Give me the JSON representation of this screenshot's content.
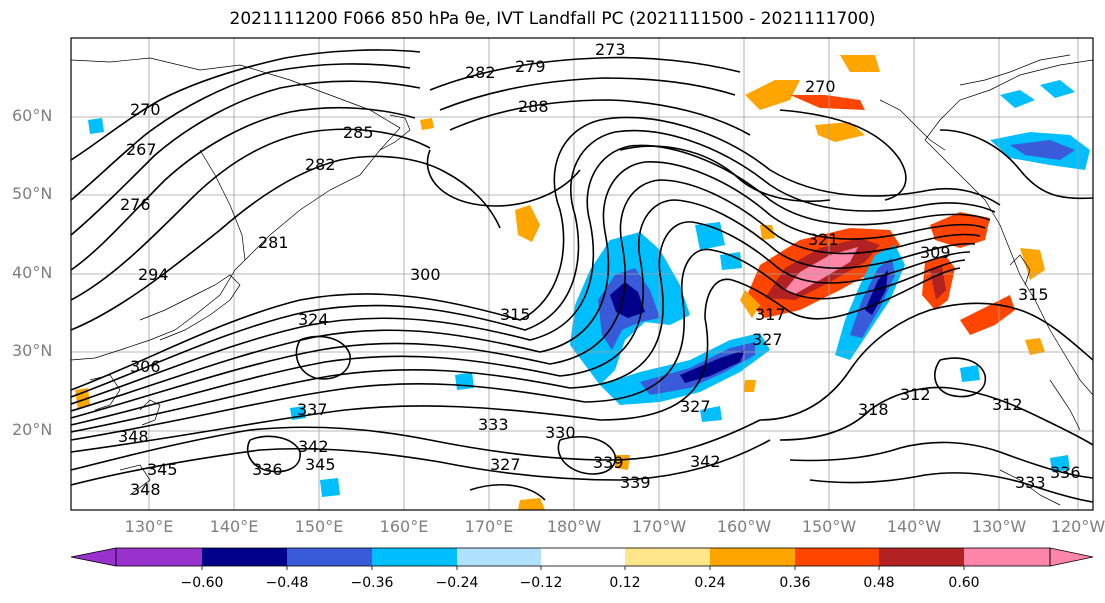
{
  "title": "2021111200 F066 850 hPa θe, IVT Landfall PC (2021111500 - 2021111700)",
  "lat_labels": [
    "60°N",
    "50°N",
    "40°N",
    "30°N",
    "20°N"
  ],
  "lon_labels": [
    "130°E",
    "140°E",
    "150°E",
    "160°E",
    "170°E",
    "180°W",
    "170°W",
    "160°W",
    "150°W",
    "140°W",
    "130°W",
    "120°W"
  ],
  "contour_labels": [
    "273",
    "279",
    "282",
    "270",
    "288",
    "285",
    "267",
    "270",
    "276",
    "282",
    "294",
    "281",
    "300",
    "324",
    "315",
    "306",
    "348",
    "337",
    "342",
    "345",
    "345",
    "339",
    "336",
    "348",
    "333",
    "330",
    "339",
    "342",
    "327",
    "327",
    "327",
    "312",
    "318",
    "312",
    "333",
    "336",
    "309",
    "315",
    "321",
    "317"
  ],
  "colorbar": {
    "ticks": [
      "−0.60",
      "−0.48",
      "−0.36",
      "−0.24",
      "−0.12",
      "0.12",
      "0.24",
      "0.36",
      "0.48",
      "0.60"
    ],
    "colors": [
      "#9932cc",
      "#00008b",
      "#3a5bd9",
      "#00bfff",
      "#b0e2ff",
      "#ffffff",
      "#ffe68a",
      "#ffa500",
      "#ff4500",
      "#b22222",
      "#ff85a9"
    ]
  },
  "palette": {
    "contour": "#000000",
    "coast": "#000000",
    "grid": "#a0a0a0",
    "axis_label": "#7f7f7f"
  }
}
